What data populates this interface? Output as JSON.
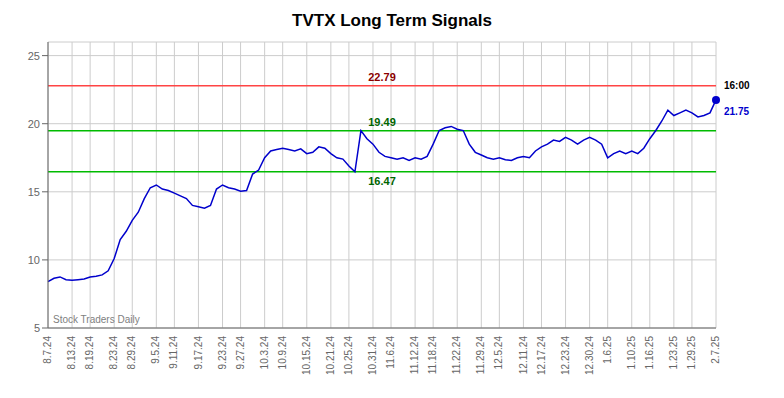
{
  "chart_data": {
    "type": "line",
    "title": "TVTX Long Term Signals",
    "watermark": "Stock Traders Daily",
    "categories": [
      "8.7.24",
      null,
      null,
      null,
      "8.13.24",
      null,
      null,
      "8.19.24",
      null,
      null,
      null,
      "8.23.24",
      null,
      null,
      "8.29.24",
      null,
      null,
      null,
      "9.5.24",
      null,
      null,
      "9.11.24",
      null,
      null,
      null,
      "9.17.24",
      null,
      null,
      null,
      "9.23.24",
      null,
      null,
      "9.27.24",
      null,
      null,
      null,
      "10.3.24",
      null,
      null,
      "10.9.24",
      null,
      null,
      null,
      "10.15.24",
      null,
      null,
      null,
      "10.21.24",
      null,
      null,
      "10.25.24",
      null,
      null,
      null,
      "10.31.24",
      null,
      null,
      "11.6.24",
      null,
      null,
      null,
      "11.12.24",
      null,
      null,
      "11.18.24",
      null,
      null,
      null,
      "11.22.24",
      null,
      null,
      null,
      "11.29.24",
      null,
      null,
      "12.5.24",
      null,
      null,
      null,
      "12.11.24",
      null,
      null,
      "12.17.24",
      null,
      null,
      null,
      "12.23.24",
      null,
      null,
      null,
      "12.30.24",
      null,
      null,
      "1.6.25",
      null,
      null,
      null,
      "1.10.25",
      null,
      null,
      "1.16.25",
      null,
      null,
      null,
      "1.23.25",
      null,
      null,
      "1.29.25",
      null,
      null,
      null,
      "2.7.25"
    ],
    "values": [
      8.4,
      8.65,
      8.75,
      8.55,
      8.5,
      8.55,
      8.6,
      8.75,
      8.8,
      8.9,
      9.2,
      10.1,
      11.5,
      12.1,
      12.9,
      13.5,
      14.5,
      15.3,
      15.5,
      15.2,
      15.1,
      14.9,
      14.7,
      14.5,
      14.0,
      13.9,
      13.8,
      14.0,
      15.2,
      15.5,
      15.3,
      15.2,
      15.05,
      15.1,
      16.3,
      16.6,
      17.5,
      18.0,
      18.1,
      18.2,
      18.1,
      18.0,
      18.15,
      17.8,
      17.9,
      18.3,
      18.2,
      17.8,
      17.5,
      17.4,
      16.9,
      16.47,
      19.49,
      18.9,
      18.5,
      17.9,
      17.6,
      17.5,
      17.4,
      17.5,
      17.3,
      17.5,
      17.4,
      17.6,
      18.5,
      19.5,
      19.7,
      19.8,
      19.6,
      19.5,
      18.5,
      17.9,
      17.7,
      17.5,
      17.4,
      17.5,
      17.35,
      17.3,
      17.5,
      17.6,
      17.5,
      18.0,
      18.3,
      18.5,
      18.8,
      18.7,
      19.0,
      18.8,
      18.5,
      18.8,
      19.0,
      18.8,
      18.5,
      17.5,
      17.8,
      18.0,
      17.8,
      18.0,
      17.8,
      18.2,
      18.9,
      19.5,
      20.2,
      21.0,
      20.6,
      20.8,
      21.0,
      20.8,
      20.5,
      20.6,
      20.8,
      21.75
    ],
    "color": "#0000cc",
    "ylim": [
      5,
      26
    ],
    "yticks": [
      5,
      10,
      15,
      20,
      25
    ],
    "grid": true,
    "reference_lines": [
      {
        "value": 22.79,
        "label": "22.79",
        "color": "#ff4444",
        "label_color": "darkred",
        "position": "above"
      },
      {
        "value": 19.49,
        "label": "19.49",
        "color": "#00bb00",
        "label_color": "darkgreen",
        "position": "above"
      },
      {
        "value": 16.47,
        "label": "16.47",
        "color": "#00bb00",
        "label_color": "darkgreen",
        "position": "below"
      }
    ],
    "last_point": {
      "label": "16:00",
      "value": 21.75
    }
  }
}
